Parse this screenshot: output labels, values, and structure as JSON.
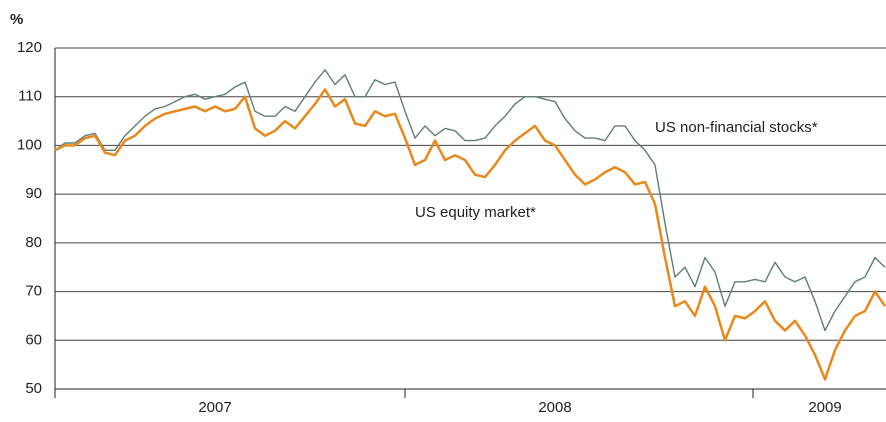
{
  "chart_data": {
    "type": "line",
    "y_label": "%",
    "categories": [
      null,
      null,
      null,
      null,
      null,
      null,
      null,
      null,
      null,
      null,
      null,
      null,
      null,
      null,
      null,
      null,
      "2007",
      null,
      null,
      null,
      null,
      null,
      null,
      null,
      null,
      null,
      null,
      null,
      null,
      null,
      null,
      null,
      null,
      null,
      null,
      null,
      null,
      null,
      null,
      null,
      null,
      null,
      null,
      null,
      null,
      null,
      null,
      null,
      null,
      null,
      "2008",
      null,
      null,
      null,
      null,
      null,
      null,
      null,
      null,
      null,
      null,
      null,
      null,
      null,
      null,
      null,
      null,
      null,
      null,
      null,
      null,
      null,
      null,
      null,
      null,
      null,
      null,
      "2009",
      null,
      null,
      null,
      null,
      null,
      null
    ],
    "series": [
      {
        "name": "US non-financial stocks*",
        "color": "#5f7f73",
        "values": [
          99,
          100.5,
          100.5,
          102,
          102.5,
          99,
          99,
          102,
          104,
          106,
          107.5,
          108,
          109,
          110,
          110.5,
          109.5,
          110,
          110.5,
          112,
          113,
          107,
          106,
          106,
          108,
          107,
          110,
          113,
          115.5,
          112.5,
          114.5,
          110,
          110,
          113.5,
          112.5,
          113,
          107,
          101.5,
          104,
          102,
          103.5,
          103,
          101,
          101,
          101.5,
          104,
          106,
          108.5,
          110,
          110,
          109.5,
          109,
          105.5,
          103,
          101.5,
          101.5,
          101,
          104,
          104,
          101,
          99,
          96,
          84,
          73,
          75,
          71,
          77,
          74,
          67,
          72,
          72,
          72.5,
          72,
          76,
          73,
          72,
          73,
          68,
          62,
          66,
          69,
          72,
          73,
          77,
          75
        ]
      },
      {
        "name": "US equity market*",
        "color": "#e8891c",
        "values": [
          99,
          100,
          100,
          101.5,
          102,
          98.5,
          98,
          101,
          102,
          104,
          105.5,
          106.5,
          107,
          107.5,
          108,
          107,
          108,
          107,
          107.5,
          110,
          103.5,
          102,
          103,
          105,
          103.5,
          106,
          108.5,
          111.5,
          108,
          109.5,
          104.5,
          104,
          107,
          106,
          106.5,
          101.5,
          96,
          97,
          101,
          97,
          98,
          97,
          94,
          93.5,
          96,
          99,
          101,
          102.5,
          104,
          101,
          100,
          97,
          94,
          92,
          93,
          94.5,
          95.5,
          94.5,
          92,
          92.5,
          88,
          77,
          67,
          68,
          65,
          71,
          67,
          60,
          65,
          64.5,
          66,
          68,
          64,
          62,
          64,
          61,
          57,
          52,
          58,
          62,
          65,
          66,
          70,
          67
        ]
      }
    ],
    "ylim": [
      50,
      120
    ],
    "yticks": [
      50,
      60,
      70,
      80,
      90,
      100,
      110,
      120
    ],
    "grid": true
  }
}
